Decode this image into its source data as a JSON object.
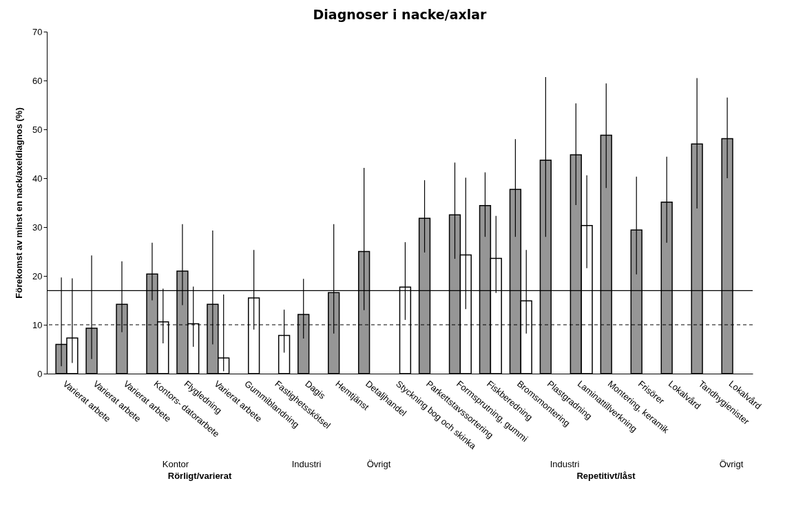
{
  "chart_data": {
    "type": "bar",
    "title": "Diagnoser i nacke/axlar",
    "ylabel": "Förekomst av minst en nack/axeldiagnos (%)",
    "categories": [
      "Varierat arbete",
      "Varierat arbete",
      "Varierat arbete",
      "Kontors- datorarbete",
      "Flygledning",
      "Varierat arbete",
      "Gummiblandning",
      "Fastighetsskötsel",
      "Dagis",
      "Hemtjänst",
      "Detaljhandel",
      "Styckning bog och skinka",
      "Parkettstavssortering",
      "Formsprutning, gummi",
      "Fiskberedning",
      "Bromsmontering",
      "Plastgradning",
      "Laminattillverkning",
      "Montering, keramik",
      "Frisörer",
      "Lokalvård",
      "Tandhygienister",
      "Lokalvård"
    ],
    "series": [
      {
        "color": "#969696",
        "values": [
          6.0,
          9.3,
          14.2,
          20.4,
          21.0,
          14.2,
          null,
          null,
          12.1,
          16.6,
          25.0,
          null,
          31.8,
          32.5,
          34.4,
          37.7,
          43.7,
          44.8,
          48.8,
          29.4,
          35.1,
          47.0,
          48.1
        ],
        "errors": [
          [
            1.5,
            19.7
          ],
          [
            3.0,
            24.2
          ],
          [
            8.5,
            23.0
          ],
          [
            15.0,
            26.8
          ],
          [
            14.0,
            30.6
          ],
          [
            6.0,
            29.3
          ],
          null,
          null,
          [
            7.2,
            19.4
          ],
          [
            8.2,
            30.6
          ],
          [
            13.0,
            42.1
          ],
          null,
          [
            24.8,
            39.6
          ],
          [
            23.5,
            43.2
          ],
          [
            28.0,
            41.2
          ],
          [
            28.0,
            48.0
          ],
          [
            28.0,
            60.7
          ],
          [
            34.5,
            55.3
          ],
          [
            38.0,
            59.4
          ],
          [
            20.3,
            40.3
          ],
          [
            26.8,
            44.4
          ],
          [
            33.8,
            60.5
          ],
          [
            40.0,
            56.5
          ]
        ]
      },
      {
        "color": "#ffffff",
        "values": [
          7.3,
          null,
          null,
          10.6,
          10.2,
          3.2,
          15.5,
          7.8,
          null,
          null,
          null,
          17.7,
          null,
          24.3,
          23.6,
          14.9,
          null,
          30.3,
          null,
          null,
          null,
          null,
          null
        ],
        "errors": [
          [
            2.2,
            19.5
          ],
          null,
          null,
          [
            6.2,
            17.4
          ],
          [
            5.5,
            17.8
          ],
          [
            0.5,
            16.2
          ],
          [
            9.0,
            25.3
          ],
          [
            4.3,
            13.1
          ],
          null,
          null,
          null,
          [
            11.0,
            26.9
          ],
          null,
          [
            13.2,
            40.1
          ],
          [
            16.5,
            32.3
          ],
          [
            8.2,
            25.3
          ],
          null,
          [
            21.6,
            40.6
          ],
          null,
          null,
          null,
          null,
          null
        ]
      }
    ],
    "ylim": [
      0,
      70
    ],
    "yticks": [
      0,
      10,
      20,
      30,
      40,
      50,
      60,
      70
    ],
    "grid": false,
    "legend": false,
    "ref_lines": [
      {
        "axis": "y",
        "value": 17,
        "line_style": "solid"
      },
      {
        "axis": "y",
        "value": 10,
        "line_style": "dashed"
      }
    ],
    "annotations": [
      "Kontor",
      "Industri",
      "Övrigt",
      "Rörligt/varierat",
      "Industri",
      "Övrigt",
      "Repetitivt/låst"
    ]
  }
}
